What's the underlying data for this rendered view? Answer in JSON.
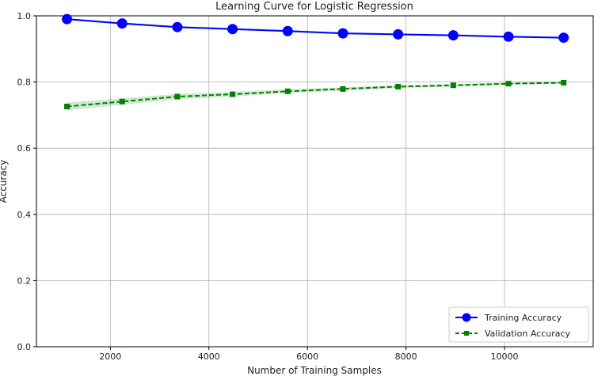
{
  "chart_data": {
    "type": "line",
    "title": "Learning Curve for Logistic Regression",
    "xlabel": "Number of Training Samples",
    "ylabel": "Accuracy",
    "xlim": [
      500,
      11800
    ],
    "ylim": [
      0.0,
      1.0
    ],
    "x_ticks": [
      2000,
      4000,
      6000,
      8000,
      10000
    ],
    "y_ticks": [
      0.0,
      0.2,
      0.4,
      0.6,
      0.8,
      1.0
    ],
    "grid": true,
    "legend_position": "lower-right",
    "x": [
      1120,
      2240,
      3360,
      4480,
      5600,
      6720,
      7840,
      8960,
      10080,
      11200
    ],
    "series": [
      {
        "name": "Training Accuracy",
        "color": "#0000ff",
        "line_style": "solid",
        "marker": "circle",
        "values": [
          0.99,
          0.977,
          0.966,
          0.96,
          0.954,
          0.947,
          0.944,
          0.941,
          0.937,
          0.934
        ],
        "band": [
          0.003,
          0.003,
          0.003,
          0.003,
          0.003,
          0.003,
          0.003,
          0.003,
          0.003,
          0.003
        ]
      },
      {
        "name": "Validation Accuracy",
        "color": "#008000",
        "line_style": "dashed",
        "marker": "square",
        "values": [
          0.726,
          0.741,
          0.756,
          0.763,
          0.772,
          0.779,
          0.786,
          0.79,
          0.795,
          0.798
        ],
        "band": [
          0.012,
          0.01,
          0.008,
          0.007,
          0.006,
          0.005,
          0.004,
          0.004,
          0.003,
          0.003
        ]
      }
    ]
  }
}
